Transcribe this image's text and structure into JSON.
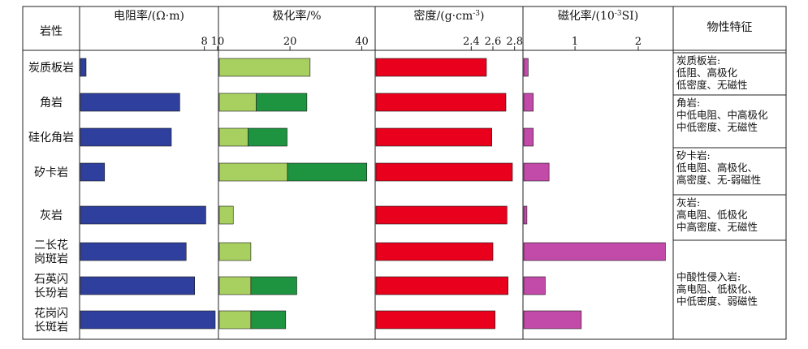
{
  "chart_data": {
    "type": "bar",
    "category_header": "岩性",
    "categories": [
      [
        "炭质板岩"
      ],
      [
        "角岩"
      ],
      [
        "硅化角岩"
      ],
      [
        "矽卡岩"
      ],
      [
        "灰岩"
      ],
      [
        "二长花",
        "岗斑岩"
      ],
      [
        "石英闪",
        "长玢岩"
      ],
      [
        "花岗闪",
        "长斑岩"
      ]
    ],
    "panels": [
      {
        "name": "resistivity",
        "header_parts": [
          "电阻率/",
          "(Ω·m)"
        ],
        "scale": "log",
        "xlim": [
          1,
          10
        ],
        "ticks": [
          8,
          10
        ],
        "ticklabels": [
          "8",
          "10"
        ],
        "color": "#2f3f9e",
        "values": [
          1.1,
          5.3,
          4.6,
          1.5,
          8.2,
          5.9,
          6.8,
          9.6
        ]
      },
      {
        "name": "polarizability",
        "header_parts": [
          "极化率/%"
        ],
        "scale": "linear",
        "xlim": [
          0.3,
          43.5
        ],
        "ticks": [
          20,
          40
        ],
        "ticklabels": [
          "20",
          "40"
        ],
        "colors": [
          "#a8d060",
          "#1e9441"
        ],
        "low": [
          25.6,
          10.6,
          8.3,
          19.3,
          4.2,
          9.1,
          9.1,
          9.1
        ],
        "high": [
          25.6,
          24.7,
          19.2,
          41.4,
          4.2,
          9.1,
          21.9,
          18.8
        ]
      },
      {
        "name": "density",
        "header_parts": [
          "密度/(g·cm",
          "-3",
          ")"
        ],
        "scale": "linear",
        "xlim": [
          1.52,
          2.87
        ],
        "ticks": [
          2.4,
          2.6,
          2.8
        ],
        "ticklabels": [
          "2.4",
          "2.6",
          "2.8"
        ],
        "color": "#e8001c",
        "values": [
          2.54,
          2.72,
          2.59,
          2.78,
          2.73,
          2.6,
          2.74,
          2.62
        ]
      },
      {
        "name": "susceptibility",
        "header_parts": [
          "磁化率/(10",
          "-3",
          "SI)"
        ],
        "scale": "linear",
        "xlim": [
          0.19,
          2.54
        ],
        "ticks": [
          1,
          2
        ],
        "ticklabels": [
          "1",
          "2"
        ],
        "color": "#c24aa8",
        "values": [
          0.26,
          0.34,
          0.34,
          0.59,
          0.24,
          2.43,
          0.53,
          1.1
        ]
      }
    ],
    "properties_header": "物性特征",
    "properties": [
      {
        "title": "炭质板岩:",
        "lines": [
          "低阻、高极化",
          "低密度、无磁性"
        ]
      },
      {
        "title": "角岩:",
        "lines": [
          "中低电阻、中高极化",
          "中低密度、无磁性"
        ]
      },
      {
        "title": "矽卡岩:",
        "lines": [
          "低电阻、高极化、",
          "高密度、无-弱磁性"
        ]
      },
      {
        "title": "灰岩:",
        "lines": [
          "高电阻、低极化",
          "中高密度、无磁性"
        ]
      },
      {
        "title": "中酸性侵入岩:",
        "lines": [
          "高电阻、低极化、",
          "中低密度、弱磁性"
        ]
      }
    ]
  }
}
